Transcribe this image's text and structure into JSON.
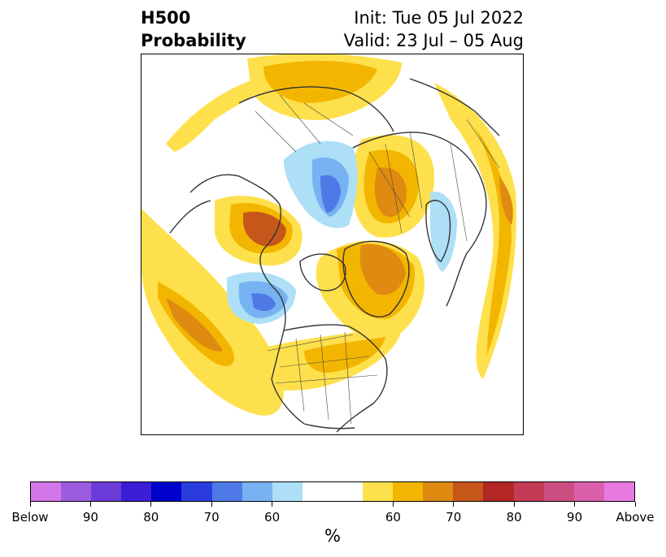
{
  "title": {
    "left_line1": "H500",
    "left_line2": "Probability",
    "right_line1": "Init: Tue 05 Jul 2022",
    "right_line2": "Valid: 23 Jul – 05 Aug"
  },
  "map": {
    "projection": "north-polar-stereographic",
    "description_regions": [
      {
        "region": "Alaska / Bering",
        "category": "above",
        "level": "60-70"
      },
      {
        "region": "Siberia (Yakutia)",
        "category": "above",
        "level": "60-75"
      },
      {
        "region": "Arctic Ocean / Barents Sea",
        "category": "below",
        "level": "60-75"
      },
      {
        "region": "Central Russia / Urals",
        "category": "above",
        "level": "60-75"
      },
      {
        "region": "Scandinavia",
        "category": "below",
        "level": "60"
      },
      {
        "region": "Greenland",
        "category": "above",
        "level": "60-75"
      },
      {
        "region": "Canadian Arctic",
        "category": "below",
        "level": "60-70"
      },
      {
        "region": "North Atlantic / Europe west",
        "category": "above",
        "level": "60-70"
      },
      {
        "region": "Central/Eastern US",
        "category": "above",
        "level": "60-70"
      },
      {
        "region": "North Pacific",
        "category": "above",
        "level": "60-70"
      }
    ]
  },
  "colorbar": {
    "unit": "%",
    "colors": [
      "#d376e8",
      "#9d5bdf",
      "#6c3cd9",
      "#3a1ed6",
      "#0000cc",
      "#2a3ddc",
      "#4f79e6",
      "#77b2f2",
      "#addff7",
      "#ffffff",
      "#fee04c",
      "#f3b600",
      "#df8a10",
      "#c6561a",
      "#b22626",
      "#c43b56",
      "#cd4f82",
      "#db5faa",
      "#e87adf"
    ],
    "tick_labels": [
      "Below",
      "90",
      "80",
      "70",
      "60",
      "60",
      "70",
      "80",
      "90",
      "Above"
    ]
  }
}
